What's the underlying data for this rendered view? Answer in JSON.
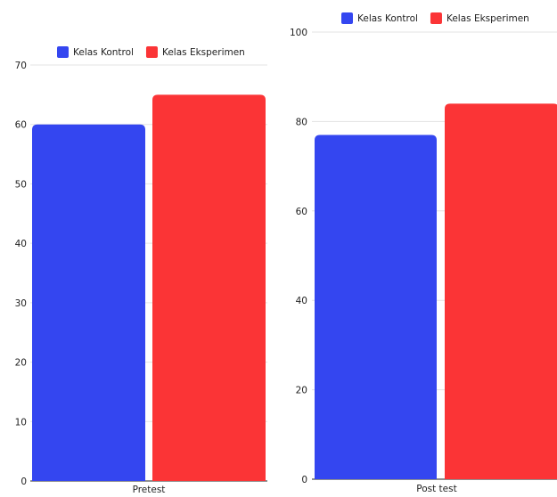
{
  "chart_data": [
    {
      "type": "bar",
      "categories": [
        "Pretest"
      ],
      "series": [
        {
          "name": "Kelas Kontrol",
          "values": [
            60
          ]
        },
        {
          "name": "Kelas Eksperimen",
          "values": [
            65
          ]
        }
      ],
      "yticks": [
        0,
        10,
        20,
        30,
        40,
        50,
        60,
        70
      ],
      "ylim": [
        0,
        70
      ],
      "grid": true,
      "legend": "top"
    },
    {
      "type": "bar",
      "categories": [
        "Post test"
      ],
      "series": [
        {
          "name": "Kelas Kontrol",
          "values": [
            77
          ]
        },
        {
          "name": "Kelas Eksperimen",
          "values": [
            84
          ]
        }
      ],
      "yticks": [
        0,
        20,
        40,
        60,
        80,
        100
      ],
      "ylim": [
        0,
        100
      ],
      "grid": true,
      "legend": "top"
    }
  ],
  "colors": {
    "Kelas Kontrol": "#3446f0",
    "Kelas Eksperimen": "#fb3436",
    "grid": "#e3e3e3",
    "axis": "#222222",
    "text": "#222222"
  }
}
